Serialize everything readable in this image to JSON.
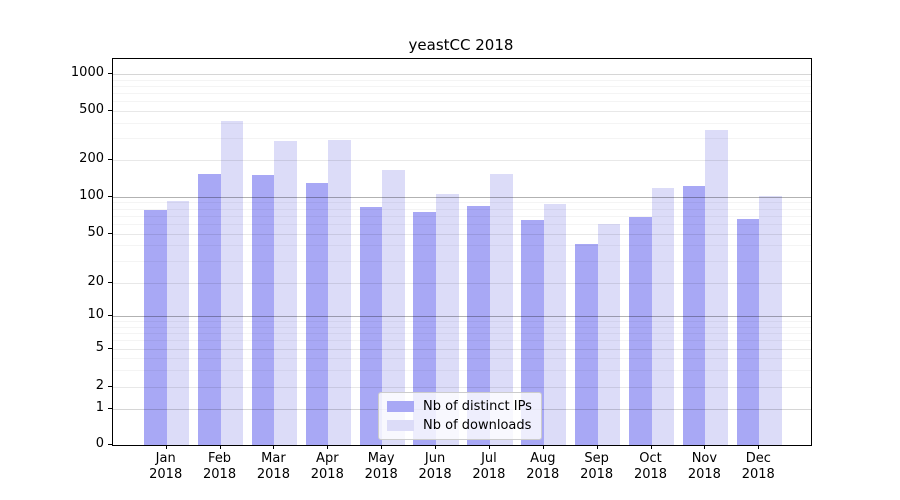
{
  "title": "yeastCC 2018",
  "legend": {
    "items": [
      {
        "label": "Nb of distinct IPs",
        "color": "#a8a8f5"
      },
      {
        "label": "Nb of downloads",
        "color": "#dcdcf8"
      }
    ]
  },
  "y_axis": {
    "tick_labels": [
      "0",
      "1",
      "2",
      "5",
      "10",
      "20",
      "50",
      "100",
      "200",
      "500",
      "1000"
    ]
  },
  "x_axis": {
    "year_line": "2018"
  },
  "chart_data": {
    "type": "bar",
    "title": "yeastCC 2018",
    "categories": [
      "Jan 2018",
      "Feb 2018",
      "Mar 2018",
      "Apr 2018",
      "May 2018",
      "Jun 2018",
      "Jul 2018",
      "Aug 2018",
      "Sep 2018",
      "Oct 2018",
      "Nov 2018",
      "Dec 2018"
    ],
    "months": [
      "Jan",
      "Feb",
      "Mar",
      "Apr",
      "May",
      "Jun",
      "Jul",
      "Aug",
      "Sep",
      "Oct",
      "Nov",
      "Dec"
    ],
    "year": "2018",
    "series": [
      {
        "name": "Nb of distinct IPs",
        "color": "#a8a8f5",
        "values": [
          78,
          155,
          152,
          129,
          83,
          75,
          84,
          64,
          41,
          68,
          123,
          66
        ]
      },
      {
        "name": "Nb of downloads",
        "color": "#dcdcf8",
        "values": [
          93,
          412,
          288,
          292,
          166,
          105,
          153,
          87,
          60,
          118,
          348,
          102
        ]
      }
    ],
    "yscale": "symlog",
    "y_ticks": [
      0,
      1,
      2,
      5,
      10,
      20,
      50,
      100,
      200,
      500,
      1000
    ],
    "y_minor_ticks": [
      3,
      4,
      6,
      7,
      8,
      9,
      30,
      40,
      60,
      70,
      80,
      90,
      300,
      400,
      600,
      700,
      800,
      900
    ],
    "ylim": [
      0,
      1300
    ],
    "xlabel": "",
    "ylabel": "",
    "grid": "both",
    "legend_position": "lower center",
    "axis_color": "#000000"
  }
}
